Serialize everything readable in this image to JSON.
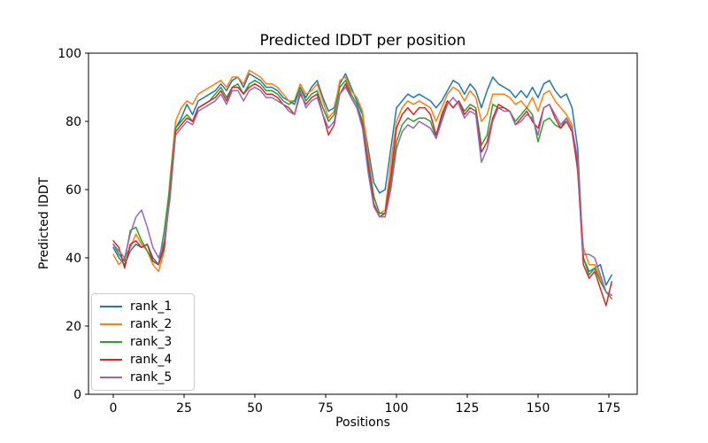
{
  "figure": {
    "title": "Predicted lDDT per position",
    "xlabel": "Positions",
    "ylabel": "Predicted lDDT"
  },
  "chart_data": {
    "type": "line",
    "title": "Predicted lDDT per position",
    "xlabel": "Positions",
    "ylabel": "Predicted lDDT",
    "xlim": [
      -8.75,
      185
    ],
    "ylim": [
      0,
      100
    ],
    "xticks": [
      0,
      25,
      50,
      75,
      100,
      125,
      150,
      175
    ],
    "yticks": [
      0,
      20,
      40,
      60,
      80,
      100
    ],
    "grid": false,
    "legend_position": "lower left",
    "x": [
      0,
      2,
      4,
      6,
      8,
      10,
      12,
      14,
      16,
      18,
      20,
      22,
      24,
      26,
      28,
      30,
      32,
      34,
      36,
      38,
      40,
      42,
      44,
      46,
      48,
      50,
      52,
      54,
      56,
      58,
      60,
      62,
      64,
      66,
      68,
      70,
      72,
      74,
      76,
      78,
      80,
      82,
      84,
      86,
      88,
      90,
      92,
      94,
      96,
      98,
      100,
      102,
      104,
      106,
      108,
      110,
      112,
      114,
      116,
      118,
      120,
      122,
      124,
      126,
      128,
      130,
      132,
      134,
      136,
      138,
      140,
      142,
      144,
      146,
      148,
      150,
      152,
      154,
      156,
      158,
      160,
      162,
      164,
      166,
      168,
      170,
      172,
      174,
      176
    ],
    "series": [
      {
        "name": "rank_1",
        "color": "#1f77b4",
        "values": [
          43,
          40,
          38,
          42,
          44,
          43,
          44,
          40,
          38,
          44,
          60,
          78,
          81,
          85,
          82,
          86,
          87,
          88,
          89,
          91,
          89,
          92,
          93,
          90,
          94,
          93,
          92,
          90,
          90,
          89,
          87,
          86,
          85,
          90,
          87,
          90,
          92,
          87,
          83,
          84,
          91,
          94,
          90,
          86,
          82,
          72,
          62,
          59,
          60,
          72,
          84,
          86,
          88,
          87,
          88,
          87,
          86,
          84,
          86,
          89,
          92,
          91,
          88,
          91,
          89,
          84,
          89,
          93,
          91,
          90,
          89,
          87,
          89,
          87,
          90,
          87,
          91,
          92,
          89,
          87,
          88,
          84,
          72,
          40,
          36,
          37,
          38,
          32,
          35
        ]
      },
      {
        "name": "rank_2",
        "color": "#ff7f0e",
        "values": [
          41,
          38,
          40,
          43,
          47,
          44,
          42,
          38,
          36,
          42,
          63,
          80,
          84,
          86,
          85,
          88,
          89,
          90,
          91,
          92,
          90,
          93,
          93,
          91,
          95,
          94,
          93,
          91,
          91,
          90,
          88,
          86,
          86,
          91,
          88,
          89,
          91,
          86,
          81,
          83,
          92,
          93,
          89,
          87,
          83,
          70,
          58,
          53,
          54,
          68,
          80,
          84,
          86,
          85,
          86,
          85,
          84,
          80,
          84,
          88,
          90,
          89,
          86,
          89,
          87,
          80,
          82,
          88,
          88,
          88,
          87,
          85,
          86,
          84,
          87,
          83,
          88,
          89,
          86,
          84,
          82,
          79,
          65,
          43,
          38,
          38,
          34,
          30,
          29
        ]
      },
      {
        "name": "rank_3",
        "color": "#2ca02c",
        "values": [
          44,
          41,
          39,
          48,
          49,
          45,
          42,
          39,
          38,
          48,
          61,
          78,
          80,
          82,
          80,
          84,
          85,
          86,
          88,
          90,
          87,
          90,
          91,
          88,
          91,
          92,
          91,
          89,
          89,
          88,
          86,
          85,
          86,
          90,
          86,
          88,
          89,
          84,
          80,
          82,
          90,
          92,
          88,
          85,
          80,
          68,
          58,
          53,
          53,
          62,
          74,
          79,
          81,
          80,
          81,
          81,
          80,
          75,
          81,
          86,
          84,
          86,
          83,
          85,
          84,
          73,
          76,
          85,
          84,
          84,
          83,
          80,
          82,
          84,
          82,
          74,
          80,
          81,
          79,
          78,
          81,
          78,
          67,
          40,
          35,
          37,
          33,
          30,
          28
        ]
      },
      {
        "name": "rank_4",
        "color": "#d62728",
        "values": [
          45,
          43,
          37,
          44,
          45,
          43,
          44,
          39,
          38,
          43,
          58,
          77,
          79,
          81,
          80,
          84,
          85,
          86,
          87,
          89,
          86,
          90,
          90,
          88,
          90,
          91,
          90,
          88,
          88,
          87,
          85,
          84,
          82,
          88,
          85,
          87,
          88,
          82,
          76,
          79,
          88,
          91,
          87,
          84,
          79,
          67,
          56,
          52,
          53,
          64,
          78,
          82,
          84,
          82,
          84,
          84,
          82,
          76,
          82,
          86,
          84,
          86,
          82,
          84,
          83,
          71,
          74,
          81,
          85,
          84,
          83,
          79,
          81,
          83,
          80,
          78,
          84,
          85,
          81,
          78,
          80,
          77,
          66,
          38,
          34,
          36,
          31,
          26,
          33
        ]
      },
      {
        "name": "rank_5",
        "color": "#9467bd",
        "values": [
          44,
          42,
          40,
          47,
          52,
          54,
          49,
          43,
          40,
          45,
          57,
          76,
          78,
          80,
          79,
          83,
          84,
          85,
          86,
          88,
          85,
          89,
          89,
          86,
          89,
          90,
          89,
          87,
          87,
          86,
          85,
          83,
          82,
          89,
          84,
          86,
          87,
          82,
          78,
          80,
          88,
          90,
          87,
          84,
          78,
          65,
          55,
          52,
          52,
          60,
          72,
          77,
          79,
          78,
          80,
          79,
          78,
          75,
          80,
          85,
          87,
          85,
          81,
          83,
          82,
          68,
          72,
          80,
          84,
          83,
          83,
          79,
          80,
          82,
          81,
          76,
          84,
          85,
          82,
          79,
          81,
          78,
          69,
          41,
          41,
          40,
          35,
          30,
          29
        ]
      }
    ]
  }
}
